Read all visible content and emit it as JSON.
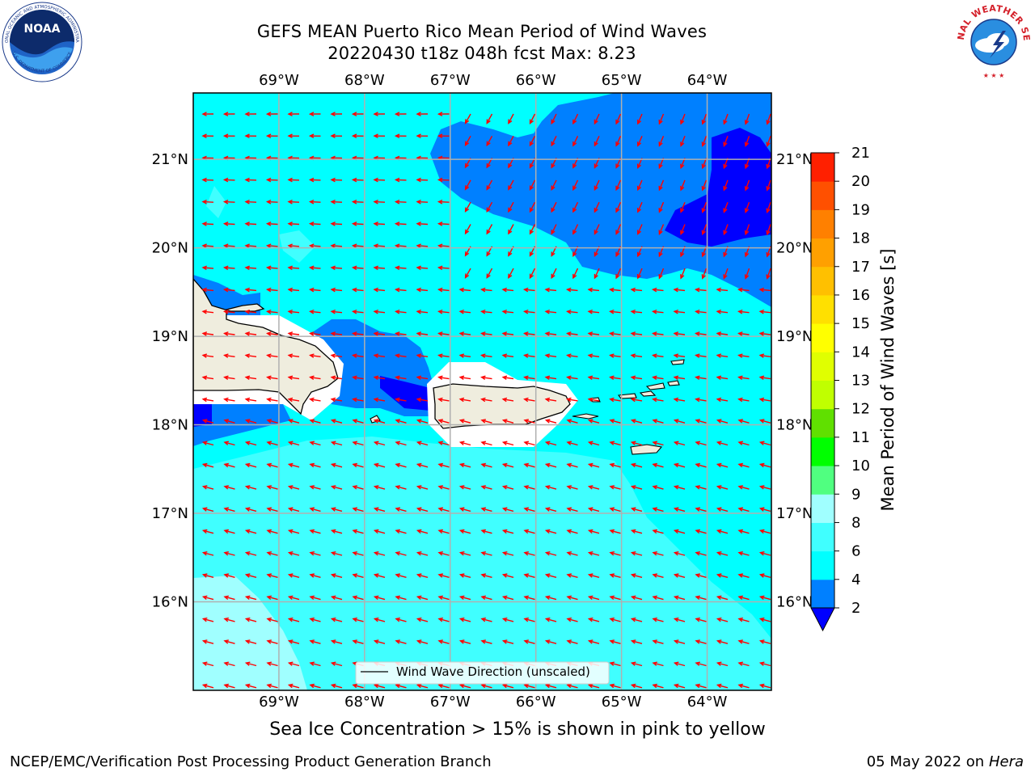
{
  "header": {
    "title_line1": "GEFS MEAN Puerto Rico Mean Period of Wind Waves",
    "title_line2": "20220430 t18z 048h fcst   Max: 8.23"
  },
  "logos": {
    "noaa": {
      "text": "NOAA",
      "ring_text": "NATIONAL OCEANIC AND ATMOSPHERIC ADMINISTRATION",
      "lower_text": "U.S. DEPARTMENT OF COMMERCE"
    },
    "nws": {
      "ring_text": "NATIONAL WEATHER SERVICE"
    }
  },
  "map": {
    "lon_labels": [
      "69°W",
      "68°W",
      "67°W",
      "66°W",
      "65°W",
      "64°W"
    ],
    "lat_labels": [
      "21°N",
      "20°N",
      "19°N",
      "18°N",
      "17°N",
      "16°N"
    ],
    "lon_values": [
      -69,
      -68,
      -67,
      -66,
      -65,
      -64
    ],
    "lat_values": [
      21,
      20,
      19,
      18,
      17,
      16
    ],
    "extent": {
      "lon_min": -70.0,
      "lon_max": -63.25,
      "lat_min": 15.0,
      "lat_max": 21.75
    },
    "legend_label": "Wind Wave Direction (unscaled)",
    "colors": {
      "ocean_base": "#00ffff",
      "period_2_4": "#0080ff",
      "period_le_2": "#0000ff",
      "period_6_8": "#40ffff",
      "period_8_9": "#a0ffff",
      "land": "#efedde",
      "arrow": "#ff0000",
      "grid": "#b0b0b0"
    }
  },
  "colorbar": {
    "label": "Mean Period of Wind Waves [s]",
    "ticks": [
      "2",
      "4",
      "6",
      "8",
      "9",
      "10",
      "11",
      "12",
      "13",
      "14",
      "15",
      "16",
      "17",
      "18",
      "19",
      "20",
      "21"
    ],
    "colors": [
      "#0080ff",
      "#00ffff",
      "#40ffff",
      "#a0ffff",
      "#50ff80",
      "#00ff00",
      "#60e000",
      "#c0ff00",
      "#e0ff00",
      "#ffff00",
      "#ffe000",
      "#ffc000",
      "#ffa000",
      "#ff8000",
      "#ff5000",
      "#ff2000"
    ],
    "under_color": "#0000ff",
    "over_color": "#ff0000"
  },
  "footer": {
    "caption": "Sea Ice Concentration > 15% is shown in pink to yellow",
    "credit_left": "NCEP/EMC/Verification Post Processing Product Generation Branch",
    "date": "05 May 2022 on",
    "host": "Hera"
  }
}
